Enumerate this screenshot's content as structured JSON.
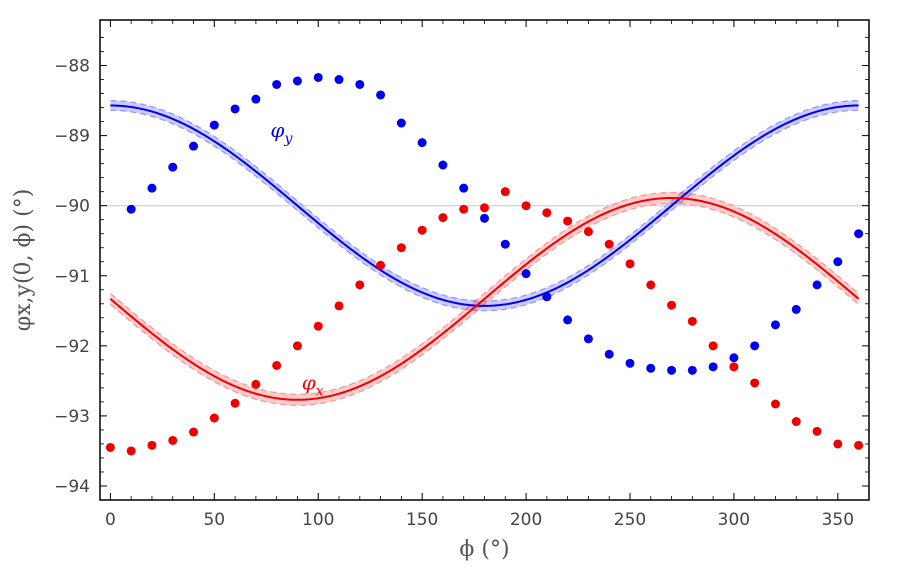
{
  "chart_data": {
    "type": "line",
    "title": "",
    "xlabel": "ϕ (°)",
    "ylabel": "φx,y(0, ϕ) (°)",
    "xlim": [
      -5,
      365
    ],
    "ylim": [
      -94.2,
      -87.35
    ],
    "xticks": [
      0,
      50,
      100,
      150,
      200,
      250,
      300,
      350
    ],
    "yticks": [
      -88,
      -89,
      -90,
      -91,
      -92,
      -93,
      -94
    ],
    "reference_line": -90,
    "series": [
      {
        "name": "φy",
        "symbol": "φ",
        "subscript": "y",
        "color": "#0000ee",
        "curve": {
          "mean": -90,
          "amplitude": 1.43,
          "phase_shift_deg": 90,
          "band_halfwidth": 0.07
        },
        "points": {
          "x": [
            10,
            20,
            30,
            40,
            50,
            60,
            70,
            80,
            90,
            100,
            110,
            120,
            130,
            140,
            150,
            160,
            170,
            180,
            190,
            200,
            210,
            220,
            230,
            240,
            250,
            260,
            270,
            280,
            290,
            300,
            310,
            320,
            330,
            340,
            350,
            360
          ],
          "y": [
            -90.05,
            -89.75,
            -89.45,
            -89.15,
            -88.85,
            -88.62,
            -88.48,
            -88.27,
            -88.22,
            -88.17,
            -88.2,
            -88.27,
            -88.42,
            -88.82,
            -89.1,
            -89.42,
            -89.75,
            -90.18,
            -90.55,
            -90.97,
            -91.3,
            -91.63,
            -91.9,
            -92.12,
            -92.25,
            -92.32,
            -92.35,
            -92.35,
            -92.3,
            -92.17,
            -92.0,
            -91.7,
            -91.48,
            -91.13,
            -90.8,
            -90.4
          ]
        }
      },
      {
        "name": "φx",
        "symbol": "φ",
        "subscript": "x",
        "color": "#ee0000",
        "curve": {
          "mean": -91.33,
          "amplitude": 1.44,
          "phase_shift_deg": 180,
          "band_halfwidth": 0.08
        },
        "points": {
          "x": [
            0,
            10,
            20,
            30,
            40,
            50,
            60,
            70,
            80,
            90,
            100,
            110,
            120,
            130,
            140,
            150,
            160,
            170,
            180,
            190,
            200,
            210,
            220,
            230,
            240,
            250,
            260,
            270,
            280,
            290,
            300,
            310,
            320,
            330,
            340,
            350,
            360
          ],
          "y": [
            -93.45,
            -93.5,
            -93.42,
            -93.35,
            -93.23,
            -93.03,
            -92.82,
            -92.55,
            -92.28,
            -92.0,
            -91.72,
            -91.43,
            -91.13,
            -90.85,
            -90.6,
            -90.35,
            -90.17,
            -90.05,
            -90.03,
            -89.8,
            -90.0,
            -90.1,
            -90.22,
            -90.37,
            -90.55,
            -90.83,
            -91.13,
            -91.42,
            -91.65,
            -92.0,
            -92.3,
            -92.53,
            -92.83,
            -93.08,
            -93.22,
            -93.4,
            -93.42
          ]
        }
      }
    ]
  }
}
